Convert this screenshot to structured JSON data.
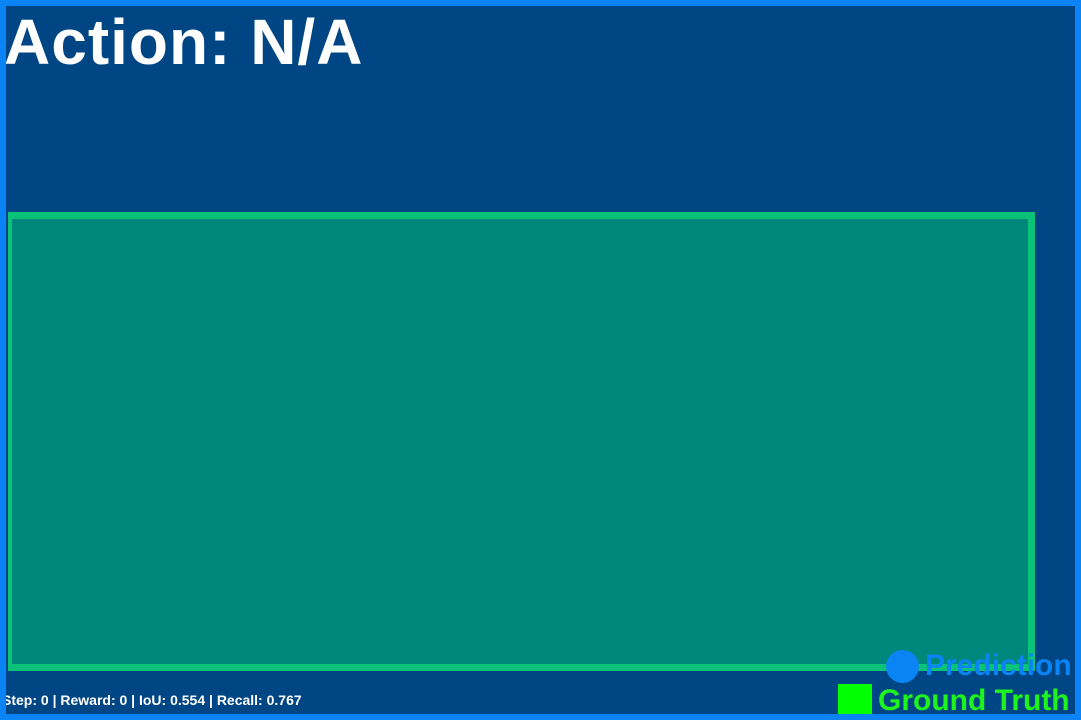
{
  "header": {
    "action_text": "Action: N/A"
  },
  "status": {
    "stats_text": "Step: 0 | Reward: 0 | IoU: 0.554 | Recall: 0.767"
  },
  "legend": {
    "prediction_label": "Prediction",
    "ground_truth_label": "Ground Truth"
  },
  "colors": {
    "background": "#004684",
    "frame": "#0a84f4",
    "box_fill": "#00877c",
    "box_border": "#0ac278",
    "prediction": "#0a84f4",
    "ground_truth": "#00ff00"
  },
  "icons": {
    "prediction_marker": "circle-icon",
    "ground_truth_marker": "square-icon"
  }
}
